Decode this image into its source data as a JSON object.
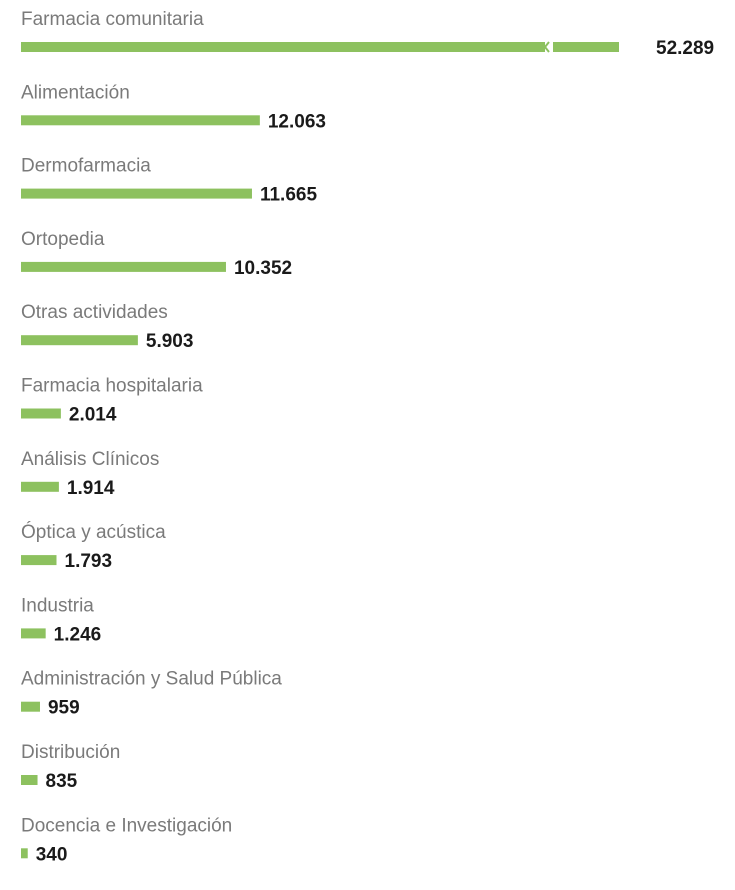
{
  "chart_data": {
    "type": "bar",
    "orientation": "horizontal",
    "bar_color": "#8dc15f",
    "axis_break_on_first_bar": true,
    "categories": [
      "Farmacia comunitaria",
      "Alimentación",
      "Dermofarmacia",
      "Ortopedia",
      "Otras actividades",
      "Farmacia hospitalaria",
      "Análisis Clínicos",
      "Óptica y acústica",
      "Industria",
      "Administración y Salud Pública",
      "Distribución",
      "Docencia e Investigación"
    ],
    "values": [
      52289,
      12063,
      11665,
      10352,
      5903,
      2014,
      1914,
      1793,
      1246,
      959,
      835,
      340
    ],
    "value_labels": [
      "52.289",
      "12.063",
      "11.665",
      "10.352",
      "5.903",
      "2.014",
      "1.914",
      "1.793",
      "1.246",
      "959",
      "835",
      "340"
    ],
    "title": "",
    "xlabel": "",
    "ylabel": ""
  }
}
